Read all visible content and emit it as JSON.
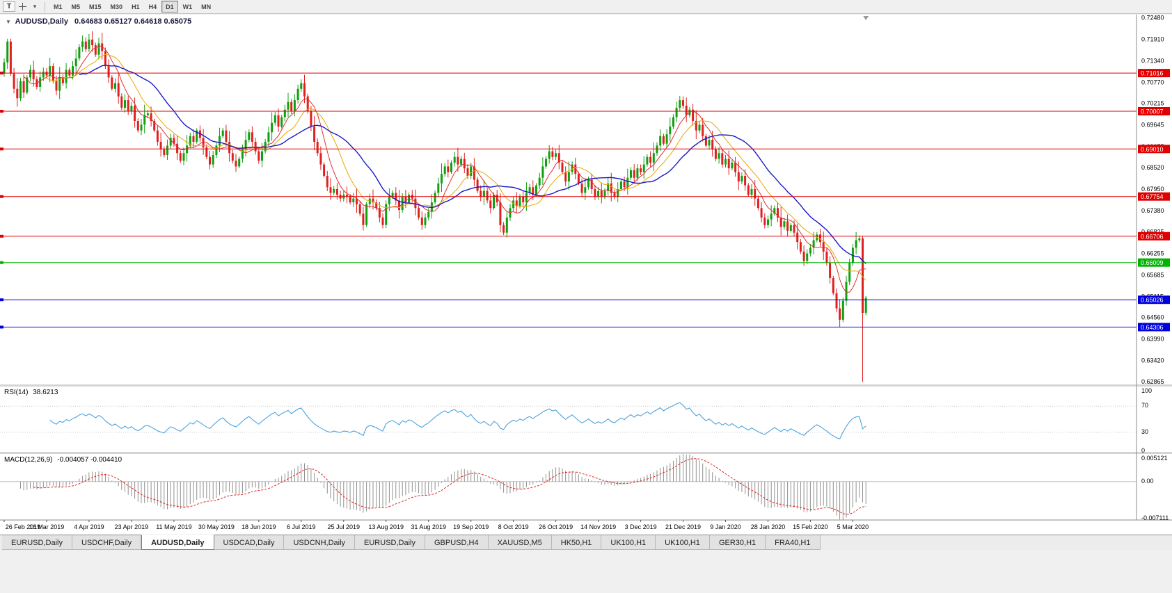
{
  "toolbar": {
    "text_tool_glyph": "T",
    "dropdown_glyph": "▾",
    "timeframes": [
      "M1",
      "M5",
      "M15",
      "M30",
      "H1",
      "H4",
      "D1",
      "W1",
      "MN"
    ],
    "active_timeframe": "D1"
  },
  "chart": {
    "collapse_glyph": "▼",
    "title": "AUDUSD,Daily",
    "ohlc": "0.64683 0.65127 0.64618 0.65075"
  },
  "chart_data": {
    "type": "candlestick",
    "symbol": "AUDUSD",
    "timeframe": "Daily",
    "last_ohlc": {
      "open": "0.64683",
      "high": "0.65127",
      "low": "0.64618",
      "close": "0.65075"
    },
    "x_labels": [
      "26 Feb 2019",
      "16 Mar 2019",
      "4 Apr 2019",
      "23 Apr 2019",
      "11 May 2019",
      "30 May 2019",
      "18 Jun 2019",
      "6 Jul 2019",
      "25 Jul 2019",
      "13 Aug 2019",
      "31 Aug 2019",
      "19 Sep 2019",
      "8 Oct 2019",
      "26 Oct 2019",
      "14 Nov 2019",
      "3 Dec 2019",
      "21 Dec 2019",
      "9 Jan 2020",
      "28 Jan 2020",
      "15 Feb 2020",
      "5 Mar 2020"
    ],
    "bars_per_label": 13,
    "first_open": 0.71,
    "closes": [
      0.713,
      0.7185,
      0.71,
      0.706,
      0.7035,
      0.708,
      0.705,
      0.709,
      0.711,
      0.7085,
      0.7065,
      0.709,
      0.7105,
      0.7095,
      0.712,
      0.708,
      0.7055,
      0.709,
      0.7075,
      0.711,
      0.7095,
      0.712,
      0.714,
      0.717,
      0.7185,
      0.7165,
      0.719,
      0.7175,
      0.715,
      0.718,
      0.716,
      0.712,
      0.709,
      0.706,
      0.7075,
      0.704,
      0.701,
      0.703,
      0.7,
      0.7015,
      0.6975,
      0.695,
      0.6965,
      0.699,
      0.6995,
      0.6975,
      0.695,
      0.692,
      0.69,
      0.6885,
      0.691,
      0.693,
      0.6915,
      0.689,
      0.687,
      0.689,
      0.691,
      0.6935,
      0.692,
      0.695,
      0.693,
      0.6905,
      0.688,
      0.686,
      0.6885,
      0.691,
      0.6935,
      0.695,
      0.692,
      0.689,
      0.687,
      0.6855,
      0.6875,
      0.69,
      0.6925,
      0.6945,
      0.692,
      0.6895,
      0.687,
      0.6895,
      0.692,
      0.6945,
      0.697,
      0.699,
      0.696,
      0.6985,
      0.7005,
      0.7025,
      0.7,
      0.703,
      0.706,
      0.7075,
      0.704,
      0.7,
      0.696,
      0.692,
      0.689,
      0.686,
      0.683,
      0.68,
      0.6785,
      0.6795,
      0.678,
      0.677,
      0.678,
      0.6775,
      0.676,
      0.677,
      0.6755,
      0.673,
      0.67,
      0.6755,
      0.677,
      0.676,
      0.6745,
      0.672,
      0.67,
      0.6755,
      0.6775,
      0.6785,
      0.6765,
      0.674,
      0.6775,
      0.676,
      0.678,
      0.677,
      0.6745,
      0.672,
      0.67,
      0.672,
      0.6735,
      0.676,
      0.6785,
      0.681,
      0.6835,
      0.6855,
      0.684,
      0.6865,
      0.688,
      0.686,
      0.6875,
      0.685,
      0.683,
      0.6855,
      0.682,
      0.679,
      0.6775,
      0.679,
      0.6765,
      0.6745,
      0.678,
      0.676,
      0.67,
      0.668,
      0.672,
      0.6745,
      0.6765,
      0.675,
      0.6775,
      0.676,
      0.6785,
      0.68,
      0.678,
      0.6805,
      0.6825,
      0.6855,
      0.6875,
      0.6895,
      0.688,
      0.689,
      0.6865,
      0.684,
      0.6815,
      0.684,
      0.686,
      0.6835,
      0.681,
      0.6785,
      0.68,
      0.682,
      0.6795,
      0.6775,
      0.679,
      0.6775,
      0.679,
      0.681,
      0.6785,
      0.6775,
      0.6795,
      0.6815,
      0.68,
      0.6825,
      0.6845,
      0.6825,
      0.685,
      0.684,
      0.686,
      0.688,
      0.6865,
      0.689,
      0.691,
      0.6935,
      0.6915,
      0.694,
      0.696,
      0.6985,
      0.701,
      0.703,
      0.7015,
      0.699,
      0.7005,
      0.6975,
      0.695,
      0.6965,
      0.6935,
      0.691,
      0.6925,
      0.69,
      0.6875,
      0.689,
      0.686,
      0.6875,
      0.685,
      0.6865,
      0.684,
      0.6815,
      0.683,
      0.6805,
      0.678,
      0.6795,
      0.677,
      0.6745,
      0.672,
      0.67,
      0.6715,
      0.673,
      0.6745,
      0.672,
      0.6695,
      0.671,
      0.6685,
      0.67,
      0.668,
      0.6655,
      0.663,
      0.6605,
      0.6625,
      0.664,
      0.666,
      0.6675,
      0.6655,
      0.663,
      0.66,
      0.656,
      0.652,
      0.648,
      0.645,
      0.65,
      0.655,
      0.66,
      0.664,
      0.666,
      0.6665,
      0.6468,
      0.65075
    ],
    "wick_pattern": [
      0.001,
      0.0022,
      0.0007,
      0.0015,
      0.0028,
      0.0009,
      0.0018,
      0.0006,
      0.0013,
      0.0024,
      0.0008,
      0.0016,
      0.0011
    ],
    "wick_overrides": {
      "1": {
        "high": 0.7192
      },
      "26": {
        "high": 0.7205
      },
      "263": {
        "high": 0.667,
        "low": 0.6286
      },
      "264": {
        "high": 0.65127,
        "low": 0.64618
      }
    },
    "open_overrides": {
      "264": 0.64683
    },
    "price_scale": {
      "min": 0.6279,
      "max": 0.7256
    },
    "y_ticks": [
      {
        "label": "0.72480",
        "value": 0.7248
      },
      {
        "label": "0.71910",
        "value": 0.7191
      },
      {
        "label": "0.71340",
        "value": 0.7134
      },
      {
        "label": "0.70770",
        "value": 0.7077
      },
      {
        "label": "0.70215",
        "value": 0.70215
      },
      {
        "label": "0.69645",
        "value": 0.69645
      },
      {
        "label": "0.69075",
        "value": 0.69075
      },
      {
        "label": "0.68520",
        "value": 0.6852
      },
      {
        "label": "0.67950",
        "value": 0.6795
      },
      {
        "label": "0.67380",
        "value": 0.6738
      },
      {
        "label": "0.66825",
        "value": 0.66825
      },
      {
        "label": "0.66255",
        "value": 0.66255
      },
      {
        "label": "0.65685",
        "value": 0.65685
      },
      {
        "label": "0.65115",
        "value": 0.65115
      },
      {
        "label": "0.64560",
        "value": 0.6456
      },
      {
        "label": "0.63990",
        "value": 0.6399
      },
      {
        "label": "0.63420",
        "value": 0.6342
      },
      {
        "label": "0.62865",
        "value": 0.62865
      }
    ],
    "h_lines": [
      {
        "label": "0.71016",
        "value": 0.71016,
        "color": "#e00000"
      },
      {
        "label": "0.70007",
        "value": 0.70007,
        "color": "#e00000"
      },
      {
        "label": "0.69010",
        "value": 0.6901,
        "color": "#e00000"
      },
      {
        "label": "0.67754",
        "value": 0.67754,
        "color": "#e00000"
      },
      {
        "label": "0.66706",
        "value": 0.66706,
        "color": "#e00000"
      },
      {
        "label": "0.66009",
        "value": 0.66009,
        "color": "#00b400"
      },
      {
        "label": "0.65026",
        "value": 0.65026,
        "color": "#0000dd"
      },
      {
        "label": "0.64306",
        "value": 0.64306,
        "color": "#0000dd"
      }
    ],
    "up_color": "#10a010",
    "down_color": "#e02020",
    "moving_averages": [
      {
        "period": 7,
        "color": "#e03030",
        "width": 1
      },
      {
        "period": 13,
        "color": "#e8a800",
        "width": 1
      },
      {
        "period": 24,
        "color": "#1818c8",
        "width": 1.4
      }
    ],
    "rsi": {
      "label": "RSI(14)",
      "value": "38.6213",
      "period": 14,
      "color": "#4aa3dc",
      "levels": [
        70,
        30
      ],
      "y_ticks": [
        {
          "label": "100",
          "value": 100
        },
        {
          "label": "70",
          "value": 70
        },
        {
          "label": "30",
          "value": 30
        },
        {
          "label": "0",
          "value": 0
        }
      ]
    },
    "macd": {
      "label": "MACD(12,26,9)",
      "value": "-0.004057 -0.004410",
      "fast": 12,
      "slow": 26,
      "signal": 9,
      "hist_color": "#909090",
      "signal_color": "#e02020",
      "range": [
        -0.007111,
        0.005121
      ],
      "y_ticks": [
        {
          "label": "0.005121",
          "value": 0.005121
        },
        {
          "label": "0.00",
          "value": 0
        },
        {
          "label": "-0.007111",
          "value": -0.007111
        }
      ]
    }
  },
  "tabs": {
    "items": [
      "EURUSD,Daily",
      "USDCHF,Daily",
      "AUDUSD,Daily",
      "USDCAD,Daily",
      "USDCNH,Daily",
      "EURUSD,Daily",
      "GBPUSD,H4",
      "XAUUSD,M5",
      "HK50,H1",
      "UK100,H1",
      "UK100,H1",
      "GER30,H1",
      "FRA40,H1"
    ],
    "active_index": 2
  }
}
